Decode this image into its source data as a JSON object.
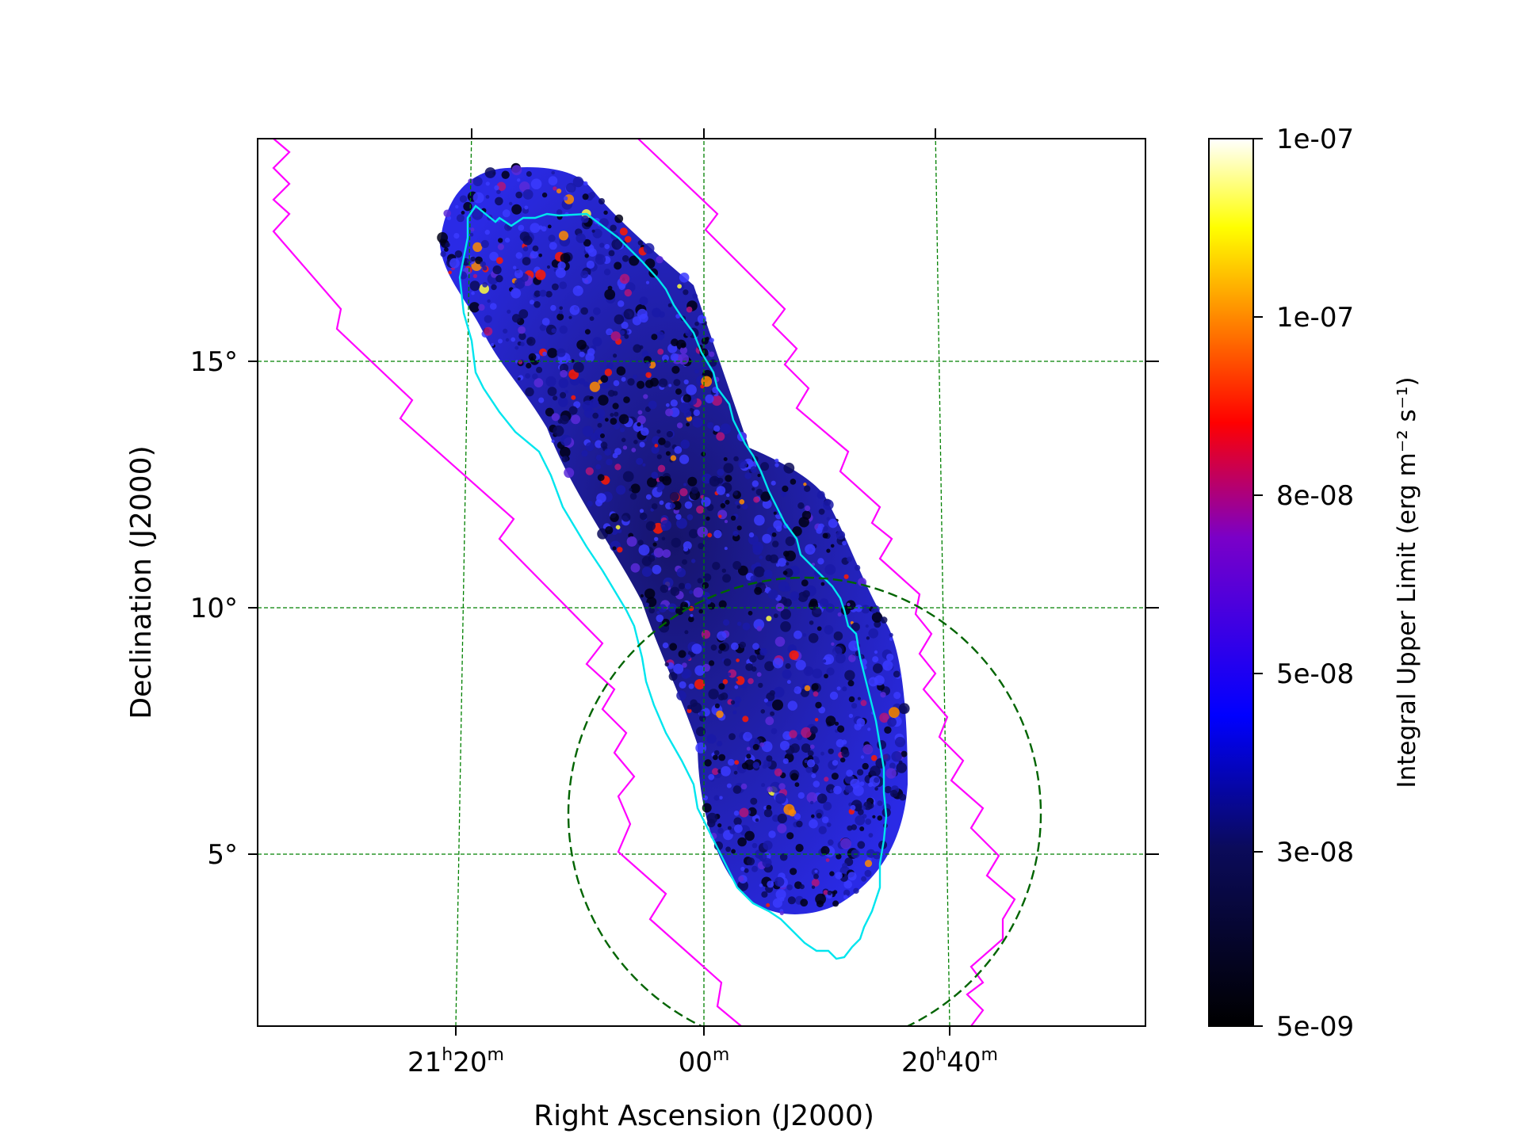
{
  "chart_data": {
    "type": "heatmap",
    "title": "",
    "xlabel": "Right Ascension (J2000)",
    "ylabel": "Declination (J2000)",
    "x_unit": "RA minutes offset from 21h00m (positive = east)",
    "x_ticks": [
      {
        "value": 20,
        "hour": "21",
        "minute": "20"
      },
      {
        "value": 0,
        "hour": "",
        "minute": "00"
      },
      {
        "value": -20,
        "hour": "20",
        "minute": "40"
      }
    ],
    "y_ticks": [
      {
        "value": 15,
        "label": "15°"
      },
      {
        "value": 10,
        "label": "10°"
      },
      {
        "value": 5,
        "label": "5°"
      }
    ],
    "xlim": [
      36,
      -36
    ],
    "ylim": [
      1.5,
      19.5
    ],
    "grid": true,
    "grid_color": "#008000",
    "colormap": "gnuplot2",
    "colorbar": {
      "label": "Integral Upper Limit (erg m⁻² s⁻¹)",
      "range": [
        5e-09,
        1e-07
      ],
      "ticks": [
        "1e-07",
        "1e-07",
        "8e-08",
        "5e-08",
        "3e-08",
        "5e-09"
      ]
    },
    "overlays": [
      {
        "name": "",
        "color": "#00e5ee",
        "style": "solid",
        "shape": "polygon"
      },
      {
        "name": "",
        "color": "#ff00ff",
        "style": "solid",
        "shape": "stepped band"
      },
      {
        "name": "",
        "color": "#006400",
        "style": "dashed",
        "shape": "circle",
        "center": {
          "ra_min_offset": -8.5,
          "dec": 5.8
        },
        "radius_deg": 4.8
      }
    ]
  }
}
